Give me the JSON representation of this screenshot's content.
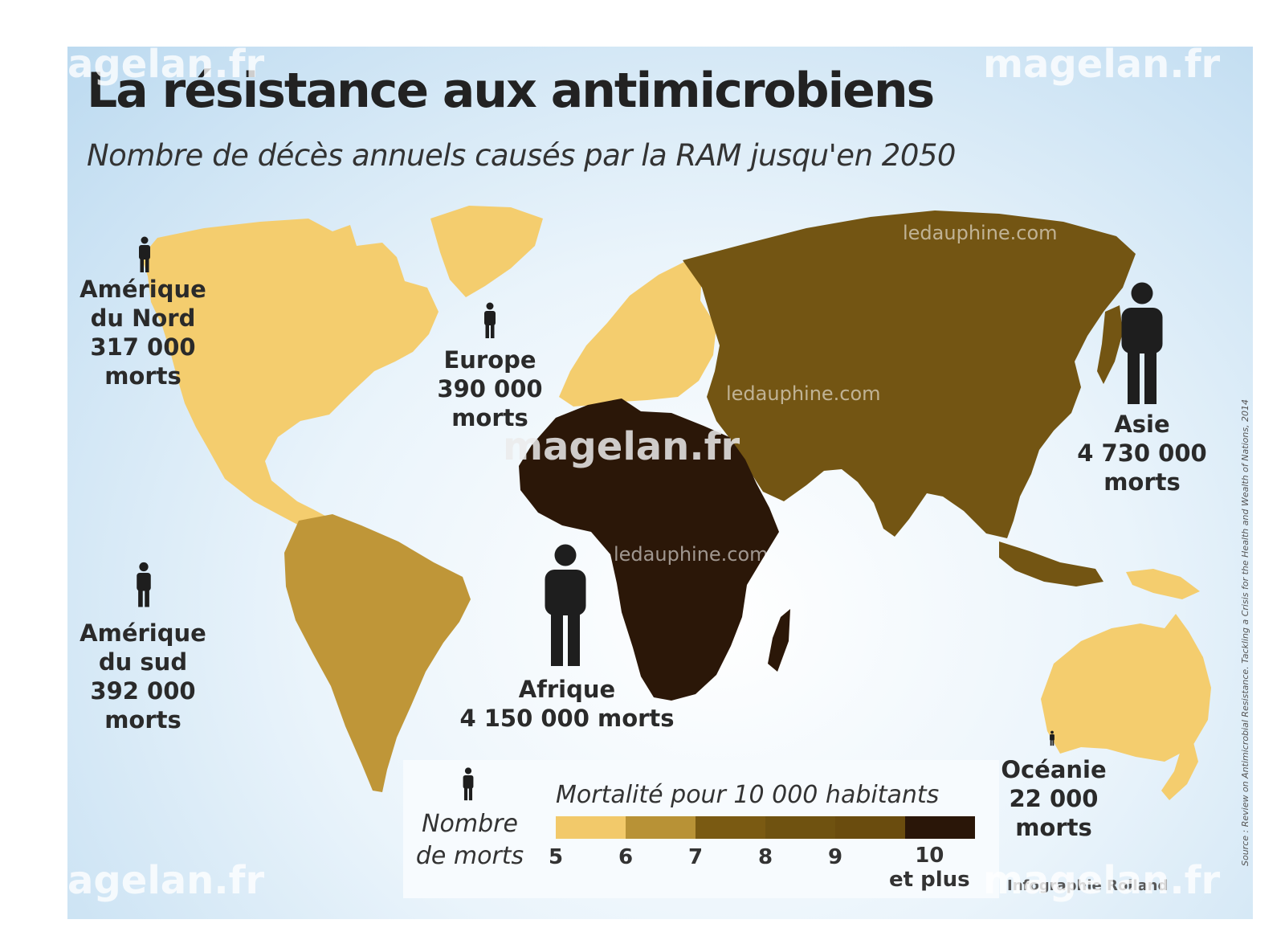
{
  "title": "La résistance aux antimicrobiens",
  "subtitle": "Nombre de décès annuels causés par la RAM jusqu'en 2050",
  "regions": {
    "north_america": {
      "line1": "Amérique",
      "line2": "du Nord",
      "line3": "317 000",
      "line4": "morts",
      "deaths": 317000,
      "mortality_class": "5"
    },
    "europe": {
      "line1": "Europe",
      "line2": "390 000",
      "line3": "morts",
      "deaths": 390000,
      "mortality_class": "5"
    },
    "asia": {
      "line1": "Asie",
      "line2": "4 730 000",
      "line3": "morts",
      "deaths": 4730000,
      "mortality_class": "9"
    },
    "south_america": {
      "line1": "Amérique",
      "line2": "du sud",
      "line3": "392 000",
      "line4": "morts",
      "deaths": 392000,
      "mortality_class": "6"
    },
    "africa": {
      "line1": "Afrique",
      "line2": "4 150 000 morts",
      "deaths": 4150000,
      "mortality_class": "10 et plus"
    },
    "oceania": {
      "line1": "Océanie",
      "line2": "22 000",
      "line3": "morts",
      "deaths": 22000,
      "mortality_class": "5"
    }
  },
  "legend": {
    "count_line1": "Nombre",
    "count_line2": "de morts",
    "scale_title": "Mortalité pour 10 000 habitants",
    "ticks": [
      "5",
      "6",
      "7",
      "8",
      "9",
      "10"
    ],
    "last_suffix": "et plus",
    "colors": [
      "#f2c96a",
      "#b89236",
      "#7a5a12",
      "#6f5210",
      "#6a4c0e",
      "#2a1608"
    ]
  },
  "colors": {
    "north_america": "#f4cd6e",
    "europe": "#f4cd6e",
    "oceania": "#f4cd6e",
    "south_america": "#bf9638",
    "asia": "#735513",
    "africa": "#2b1708",
    "figure": "#1e1e1e"
  },
  "credit": "Infographie Rolland",
  "source": "Source : Review on Antimicrobial Resistance. Tackling a Crisis for the Health and Wealth of Nations, 2014",
  "watermarks": {
    "main": "magelan.fr",
    "secondary": "ledauphine.com"
  }
}
